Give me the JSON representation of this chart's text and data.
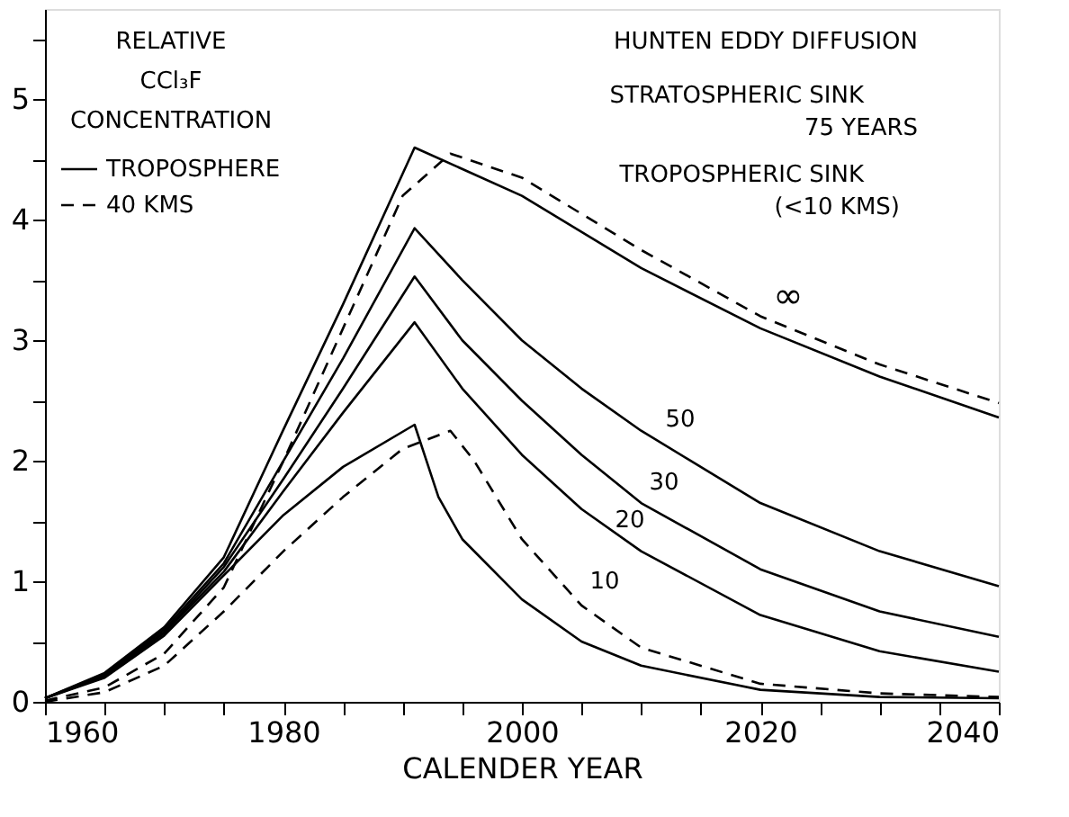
{
  "chart_data": {
    "type": "line",
    "title": "HUNTEN EDDY DIFFUSION",
    "xlabel": "CALENDER YEAR",
    "ylabel": "RELATIVE CCl₃F CONCENTRATION",
    "xlim": [
      1960,
      2040
    ],
    "ylim": [
      0,
      5.75
    ],
    "xticks": [
      1960,
      {
        "value": 1965,
        "label": null
      },
      {
        "value": 1970,
        "label": null
      },
      {
        "value": 1975,
        "label": null
      },
      1980,
      {
        "value": 1985,
        "label": null
      },
      {
        "value": 1990,
        "label": null
      },
      {
        "value": 1995,
        "label": null
      },
      2000,
      {
        "value": 2005,
        "label": null
      },
      {
        "value": 2010,
        "label": null
      },
      {
        "value": 2015,
        "label": null
      },
      2020,
      {
        "value": 2025,
        "label": null
      },
      {
        "value": 2030,
        "label": null
      },
      {
        "value": 2035,
        "label": null
      },
      2040
    ],
    "yticks": [
      0,
      {
        "value": 0.5,
        "label": null
      },
      1,
      {
        "value": 1.5,
        "label": null
      },
      2,
      {
        "value": 2.5,
        "label": null
      },
      3,
      {
        "value": 3.5,
        "label": null
      },
      4,
      {
        "value": 4.5,
        "label": null
      },
      5,
      {
        "value": 5.5,
        "label": null
      }
    ],
    "grid": false,
    "legend": "top left",
    "marker": "none",
    "series": [
      {
        "name": "TROPOSPHERE",
        "color": "#000000",
        "line_style": "solid",
        "x": [
          1960,
          1965,
          1970,
          1975,
          1980,
          1985,
          1991,
          2000,
          2010,
          2020,
          2030,
          2040
        ],
        "values": [
          0.03,
          0.24,
          0.62,
          1.2,
          2.26,
          3.3,
          4.6,
          4.2,
          3.6,
          3.1,
          2.7,
          2.36
        ]
      },
      {
        "name": "40 KMS",
        "color": "#000000",
        "line_style": "dashed",
        "x": [
          1960,
          1965,
          1970,
          1975,
          1980,
          1985,
          1990,
          1994,
          2000,
          2010,
          2020,
          2030,
          2040
        ],
        "values": [
          0.01,
          0.12,
          0.4,
          0.95,
          2.0,
          3.1,
          4.2,
          4.55,
          4.35,
          3.75,
          3.2,
          2.8,
          2.48
        ]
      },
      {
        "color": "#000000",
        "line_style": "solid",
        "x": [
          1960,
          1965,
          1970,
          1975,
          1980,
          1985,
          1991,
          1995,
          2000,
          2005,
          2010,
          2020,
          2030,
          2040
        ],
        "values": [
          0.03,
          0.23,
          0.6,
          1.15,
          2.0,
          2.85,
          3.93,
          3.5,
          3.0,
          2.6,
          2.25,
          1.65,
          1.25,
          0.96
        ]
      },
      {
        "color": "#000000",
        "line_style": "solid",
        "x": [
          1960,
          1965,
          1970,
          1975,
          1980,
          1985,
          1991,
          1995,
          2000,
          2005,
          2010,
          2020,
          2030,
          2040
        ],
        "values": [
          0.03,
          0.22,
          0.58,
          1.12,
          1.85,
          2.6,
          3.53,
          3.0,
          2.5,
          2.05,
          1.65,
          1.1,
          0.75,
          0.54
        ]
      },
      {
        "color": "#000000",
        "line_style": "solid",
        "x": [
          1960,
          1965,
          1970,
          1975,
          1980,
          1985,
          1991,
          1995,
          2000,
          2005,
          2010,
          2020,
          2030,
          2040
        ],
        "values": [
          0.03,
          0.21,
          0.57,
          1.08,
          1.75,
          2.4,
          3.15,
          2.6,
          2.05,
          1.6,
          1.25,
          0.72,
          0.42,
          0.25
        ]
      },
      {
        "color": "#000000",
        "line_style": "solid",
        "x": [
          1960,
          1965,
          1970,
          1975,
          1980,
          1985,
          1991,
          1993,
          1995,
          2000,
          2005,
          2010,
          2020,
          2030,
          2040
        ],
        "values": [
          0.03,
          0.2,
          0.55,
          1.05,
          1.55,
          1.95,
          2.3,
          1.7,
          1.35,
          0.85,
          0.5,
          0.3,
          0.1,
          0.04,
          0.03
        ]
      },
      {
        "color": "#000000",
        "line_style": "dashed",
        "x": [
          1960,
          1965,
          1970,
          1975,
          1980,
          1985,
          1990,
          1994,
          1996,
          2000,
          2005,
          2010,
          2020,
          2030,
          2040
        ],
        "values": [
          0.0,
          0.08,
          0.3,
          0.75,
          1.25,
          1.7,
          2.1,
          2.25,
          2.0,
          1.35,
          0.8,
          0.45,
          0.15,
          0.07,
          0.04
        ]
      }
    ],
    "annotations": [
      "STRATOSPHERIC SINK",
      "75 YEARS",
      "TROPOSPHERIC SINK",
      "(<10 KMS)",
      "∞",
      "50",
      "30",
      "20",
      "10"
    ]
  }
}
